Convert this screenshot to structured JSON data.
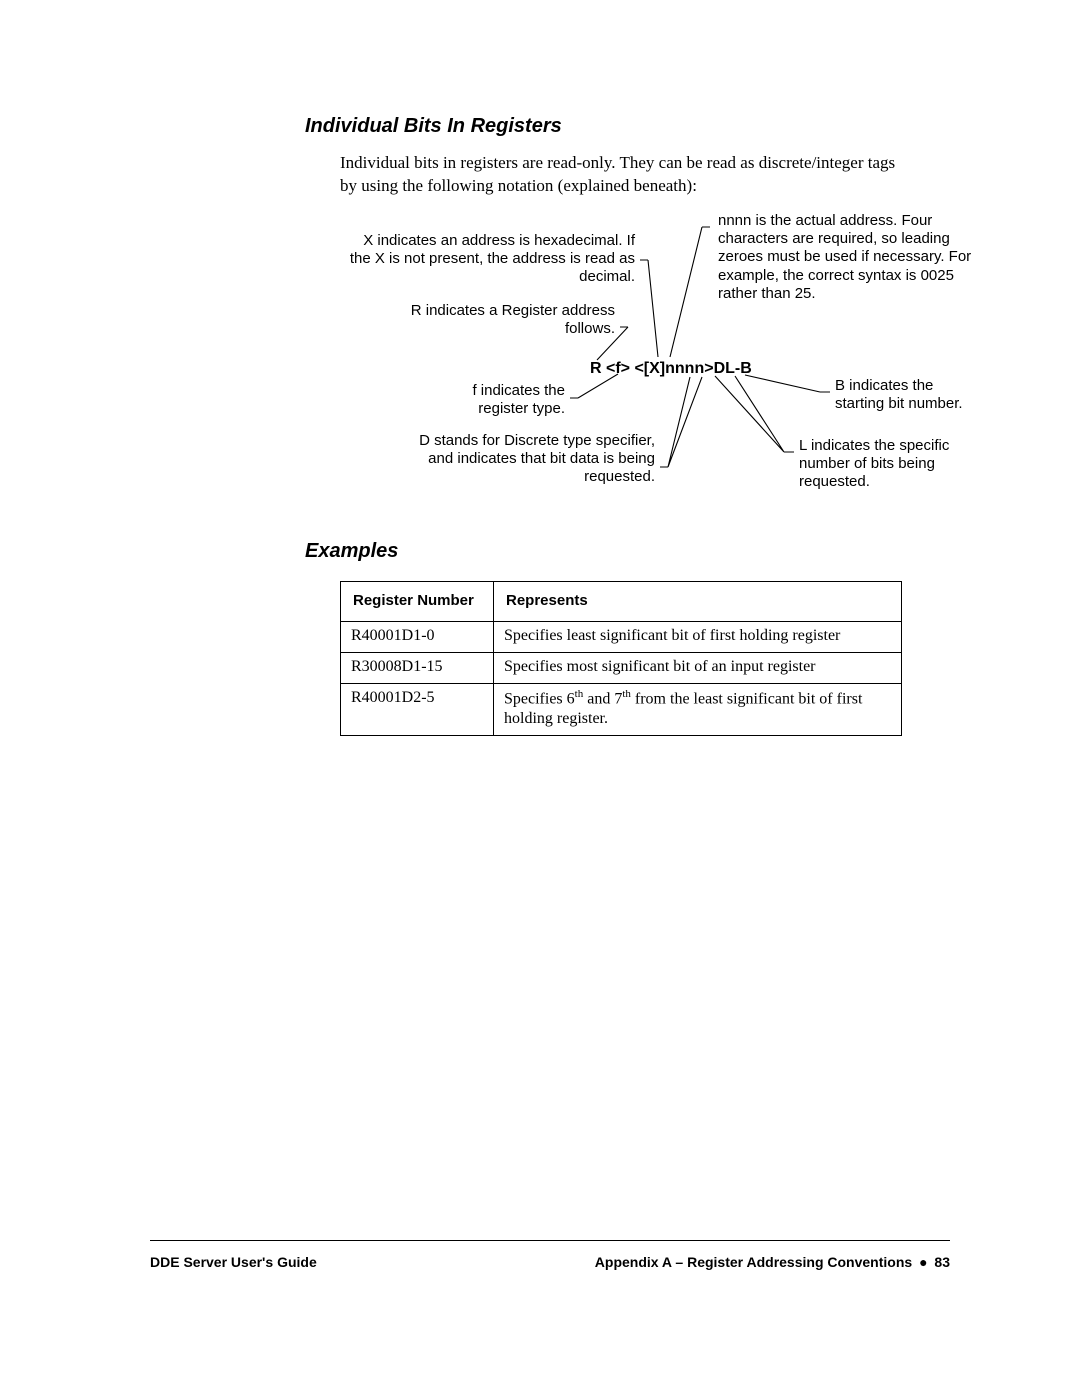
{
  "heading1": "Individual Bits In Registers",
  "intro": "Individual bits in registers are read-only. They can be read as discrete/integer tags by using the following notation (explained beneath):",
  "diagram": {
    "formula": "R <f> <[X]nnnn>DL-B",
    "annotations": {
      "x_hex": "X indicates an address is hexadecimal. If the X is not present, the address is read as decimal.",
      "r_reg": "R indicates a Register address follows.",
      "f_type": "f indicates the register type.",
      "d_disc": "D stands for Discrete type specifier, and indicates that bit data is being requested.",
      "nnnn": "nnnn is the actual address. Four characters are required, so leading zeroes must be used if necessary. For example, the correct syntax is 0025 rather than 25.",
      "b_start": "B indicates the starting bit number.",
      "l_bits": "L indicates the specific number of bits being requested."
    },
    "lines": {
      "stroke": "#000000",
      "stroke_width": 1.1,
      "paths": [
        "M300 48 l8 0  M308 48  L318 145",
        "M280 115 l8 0 M288 115 L257 148",
        "M230 186 l8 0 M238 186 L278 162",
        "M320 255 l8 0 M328 255 L350 165  M328 255 L362 165",
        "M370 15 l-8 0 M362 15  L330 145",
        "M480 180 l10 0 M480 180 L405 163",
        "M444 240 l10 0 M444 240 L395 164  M444 240 L375 164"
      ]
    }
  },
  "heading2": "Examples",
  "table": {
    "headers": [
      "Register Number",
      "Represents"
    ],
    "rows": [
      {
        "reg": "R40001D1-0",
        "rep_html": "Specifies least significant bit of first holding register"
      },
      {
        "reg": "R30008D1-15",
        "rep_html": "Specifies most significant bit of an input register"
      },
      {
        "reg": "R40001D2-5",
        "rep_html": "Specifies 6<sup>th</sup> and 7<sup>th</sup> from the least significant bit of first holding register."
      }
    ]
  },
  "footer": {
    "left": "DDE Server User's Guide",
    "right_prefix": "Appendix A – Register Addressing Conventions",
    "page_label": "83",
    "bullet": "●"
  }
}
